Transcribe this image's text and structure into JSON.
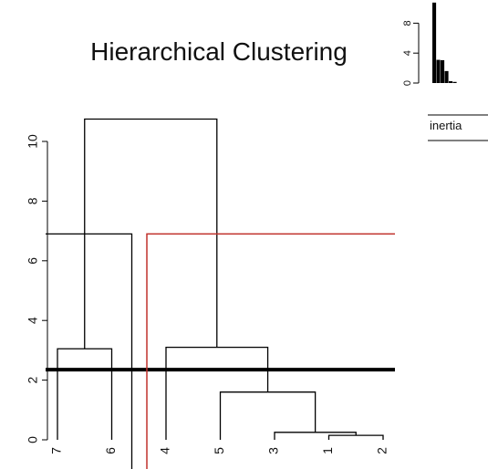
{
  "chart_data": [
    {
      "type": "dendrogram",
      "title": "Hierarchical Clustering",
      "xlabel": "",
      "ylabel": "",
      "ylim": [
        0,
        11.2
      ],
      "yticks": [
        0,
        2,
        4,
        6,
        8,
        10
      ],
      "grid": false,
      "leaf_order": [
        "7",
        "6",
        "4",
        "5",
        "3",
        "1",
        "2"
      ],
      "merges": [
        {
          "left": "1",
          "right": "2",
          "height": 0.15
        },
        {
          "left": "3",
          "right": "1+2",
          "height": 0.25
        },
        {
          "left": "5",
          "right": "3+1+2",
          "height": 1.6
        },
        {
          "left": "4",
          "right": "5+3+1+2",
          "height": 3.1
        },
        {
          "left": "7",
          "right": "6",
          "height": 3.05
        },
        {
          "left": "7+6",
          "right": "4+5+3+1+2",
          "height": 10.75
        }
      ],
      "extra_top_level_branch": {
        "height": 6.9,
        "color": "#000000"
      },
      "cut_lines": [
        {
          "height": 2.35,
          "color": "#000000"
        },
        {
          "height": 6.9,
          "color": "#c0302b"
        }
      ]
    },
    {
      "type": "bar",
      "title": "",
      "xlabel": "inertia",
      "ylabel": "",
      "ylim": [
        0,
        10
      ],
      "yticks": [
        0,
        4,
        8
      ],
      "values": [
        10.75,
        3.1,
        3.05,
        1.6,
        0.25,
        0.15
      ],
      "color": "#000000"
    }
  ]
}
